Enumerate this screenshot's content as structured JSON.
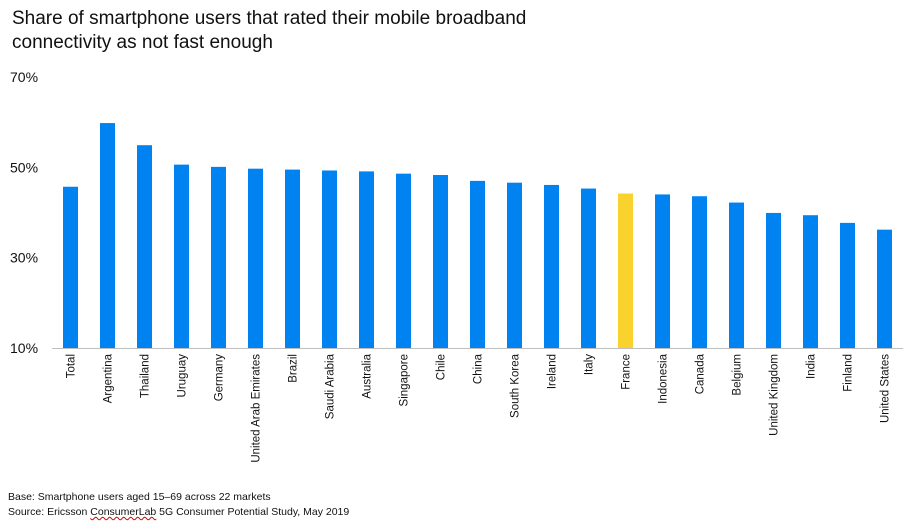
{
  "chart_data": {
    "type": "bar",
    "title": "Share of smartphone users that rated their mobile broadband connectivity as not fast enough",
    "categories": [
      "Total",
      "Argentina",
      "Thailand",
      "Uruguay",
      "Germany",
      "United Arab Emirates",
      "Brazil",
      "Saudi Arabia",
      "Australia",
      "Singapore",
      "Chile",
      "China",
      "South Korea",
      "Ireland",
      "Italy",
      "France",
      "Indonesia",
      "Canada",
      "Belgium",
      "United Kingdom",
      "India",
      "Finland",
      "United States"
    ],
    "values": [
      45.7,
      59.8,
      54.9,
      50.6,
      50.1,
      49.7,
      49.5,
      49.3,
      49.1,
      48.6,
      48.3,
      47.0,
      46.6,
      46.1,
      45.3,
      44.2,
      44.0,
      43.6,
      42.2,
      39.9,
      39.4,
      37.7,
      36.2
    ],
    "highlight_category": "France",
    "yticks": [
      "10%",
      "30%",
      "50%",
      "70%"
    ],
    "ylim": [
      10,
      70
    ],
    "xlabel": "",
    "ylabel": "",
    "grid": false,
    "colors": {
      "bar": "#0082f0",
      "highlight": "#fad22d",
      "axis": "#bfbfbf"
    }
  },
  "notes": {
    "base": "Base: Smartphone users aged 15–69 across 22 markets",
    "source_prefix": "Source: Ericsson ",
    "source_flagged": "ConsumerLab",
    "source_suffix": " 5G Consumer Potential Study, May 2019"
  }
}
